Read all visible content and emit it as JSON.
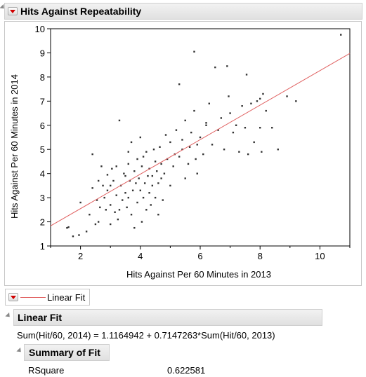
{
  "report": {
    "title": "Hits Against Repeatability"
  },
  "legend": {
    "label": "Linear Fit",
    "line_color": "#e06060"
  },
  "linear_fit": {
    "title": "Linear Fit",
    "equation": "Sum(Hit/60, 2014) = 1.1164942 + 0.7147263*Sum(Hit/60, 2013)",
    "summary": {
      "title": "Summary of Fit",
      "rows": [
        {
          "label": "RSquare",
          "value": "0.622581"
        }
      ]
    }
  },
  "chart_data": {
    "type": "scatter",
    "xlabel": "Hits Against Per 60 Minutes in 2013",
    "ylabel": "Hits Against Per 60 Minutes in 2014",
    "xlim": [
      1,
      11
    ],
    "ylim": [
      1,
      10
    ],
    "xticks": [
      2,
      4,
      6,
      8,
      10
    ],
    "yticks": [
      1,
      2,
      3,
      4,
      5,
      6,
      7,
      8,
      9,
      10
    ],
    "grid": false,
    "point_color": "#333333",
    "fit_line": {
      "intercept": 1.1164942,
      "slope": 0.7147263,
      "color": "#e06060"
    },
    "points": [
      [
        1.55,
        1.75
      ],
      [
        1.6,
        1.78
      ],
      [
        1.75,
        1.4
      ],
      [
        1.95,
        1.45
      ],
      [
        2.0,
        2.8
      ],
      [
        2.3,
        2.3
      ],
      [
        2.4,
        3.4
      ],
      [
        2.4,
        4.8
      ],
      [
        2.5,
        1.9
      ],
      [
        2.55,
        2.9
      ],
      [
        2.6,
        2.0
      ],
      [
        2.65,
        2.6
      ],
      [
        2.7,
        4.3
      ],
      [
        2.75,
        3.5
      ],
      [
        2.8,
        3.0
      ],
      [
        2.85,
        2.5
      ],
      [
        2.9,
        3.3
      ],
      [
        2.9,
        3.95
      ],
      [
        3.0,
        2.7
      ],
      [
        3.0,
        1.9
      ],
      [
        3.05,
        4.2
      ],
      [
        3.1,
        3.7
      ],
      [
        3.15,
        2.4
      ],
      [
        3.2,
        3.1
      ],
      [
        3.2,
        4.3
      ],
      [
        3.25,
        2.1
      ],
      [
        3.3,
        6.2
      ],
      [
        3.35,
        3.5
      ],
      [
        3.4,
        2.9
      ],
      [
        3.45,
        4.0
      ],
      [
        3.5,
        3.2
      ],
      [
        3.5,
        3.9
      ],
      [
        3.55,
        2.6
      ],
      [
        3.6,
        4.4
      ],
      [
        3.6,
        3.0
      ],
      [
        3.65,
        3.7
      ],
      [
        3.7,
        2.3
      ],
      [
        3.7,
        5.3
      ],
      [
        3.75,
        3.3
      ],
      [
        3.8,
        1.75
      ],
      [
        3.8,
        4.1
      ],
      [
        3.85,
        3.6
      ],
      [
        3.9,
        2.8
      ],
      [
        3.9,
        4.6
      ],
      [
        3.95,
        3.8
      ],
      [
        4.0,
        5.5
      ],
      [
        4.0,
        3.3
      ],
      [
        4.05,
        2.0
      ],
      [
        4.05,
        4.3
      ],
      [
        4.1,
        3.0
      ],
      [
        4.15,
        3.6
      ],
      [
        4.2,
        2.5
      ],
      [
        4.2,
        4.9
      ],
      [
        4.25,
        3.9
      ],
      [
        4.3,
        3.2
      ],
      [
        4.3,
        4.2
      ],
      [
        4.35,
        2.7
      ],
      [
        4.4,
        3.5
      ],
      [
        4.45,
        5.0
      ],
      [
        4.5,
        4.5
      ],
      [
        4.5,
        3.0
      ],
      [
        4.55,
        4.1
      ],
      [
        4.6,
        3.6
      ],
      [
        4.65,
        5.1
      ],
      [
        4.7,
        4.4
      ],
      [
        4.7,
        3.8
      ],
      [
        4.75,
        2.9
      ],
      [
        4.8,
        4.0
      ],
      [
        4.85,
        5.6
      ],
      [
        4.9,
        4.6
      ],
      [
        5.0,
        5.3
      ],
      [
        5.0,
        3.5
      ],
      [
        5.1,
        4.3
      ],
      [
        5.15,
        4.8
      ],
      [
        5.2,
        5.8
      ],
      [
        5.3,
        7.7
      ],
      [
        5.3,
        4.7
      ],
      [
        5.4,
        5.0
      ],
      [
        5.5,
        3.8
      ],
      [
        5.5,
        6.2
      ],
      [
        5.6,
        4.4
      ],
      [
        5.65,
        5.1
      ],
      [
        5.7,
        5.7
      ],
      [
        5.8,
        9.05
      ],
      [
        5.8,
        6.6
      ],
      [
        5.85,
        4.6
      ],
      [
        5.9,
        4.0
      ],
      [
        6.0,
        5.5
      ],
      [
        6.1,
        4.8
      ],
      [
        6.2,
        6.0
      ],
      [
        6.3,
        6.9
      ],
      [
        6.4,
        5.2
      ],
      [
        6.5,
        8.4
      ],
      [
        6.6,
        5.8
      ],
      [
        6.7,
        6.3
      ],
      [
        6.8,
        5.0
      ],
      [
        6.9,
        8.45
      ],
      [
        6.95,
        7.2
      ],
      [
        7.0,
        6.5
      ],
      [
        7.1,
        5.7
      ],
      [
        7.2,
        6.0
      ],
      [
        7.3,
        4.9
      ],
      [
        7.4,
        6.8
      ],
      [
        7.5,
        5.9
      ],
      [
        7.55,
        8.1
      ],
      [
        7.6,
        4.8
      ],
      [
        7.7,
        6.9
      ],
      [
        7.8,
        5.3
      ],
      [
        7.9,
        7.0
      ],
      [
        8.0,
        5.9
      ],
      [
        8.0,
        7.1
      ],
      [
        8.05,
        4.9
      ],
      [
        8.1,
        7.3
      ],
      [
        8.2,
        6.6
      ],
      [
        8.4,
        5.9
      ],
      [
        8.6,
        5.0
      ],
      [
        8.9,
        7.2
      ],
      [
        9.2,
        7.0
      ],
      [
        10.7,
        9.75
      ],
      [
        2.2,
        1.6
      ],
      [
        3.3,
        2.5
      ],
      [
        4.1,
        4.7
      ],
      [
        4.6,
        2.3
      ],
      [
        5.4,
        5.4
      ],
      [
        3.0,
        3.5
      ],
      [
        2.6,
        3.7
      ],
      [
        4.4,
        3.9
      ],
      [
        5.9,
        5.2
      ],
      [
        6.2,
        6.1
      ],
      [
        3.6,
        4.9
      ]
    ]
  }
}
